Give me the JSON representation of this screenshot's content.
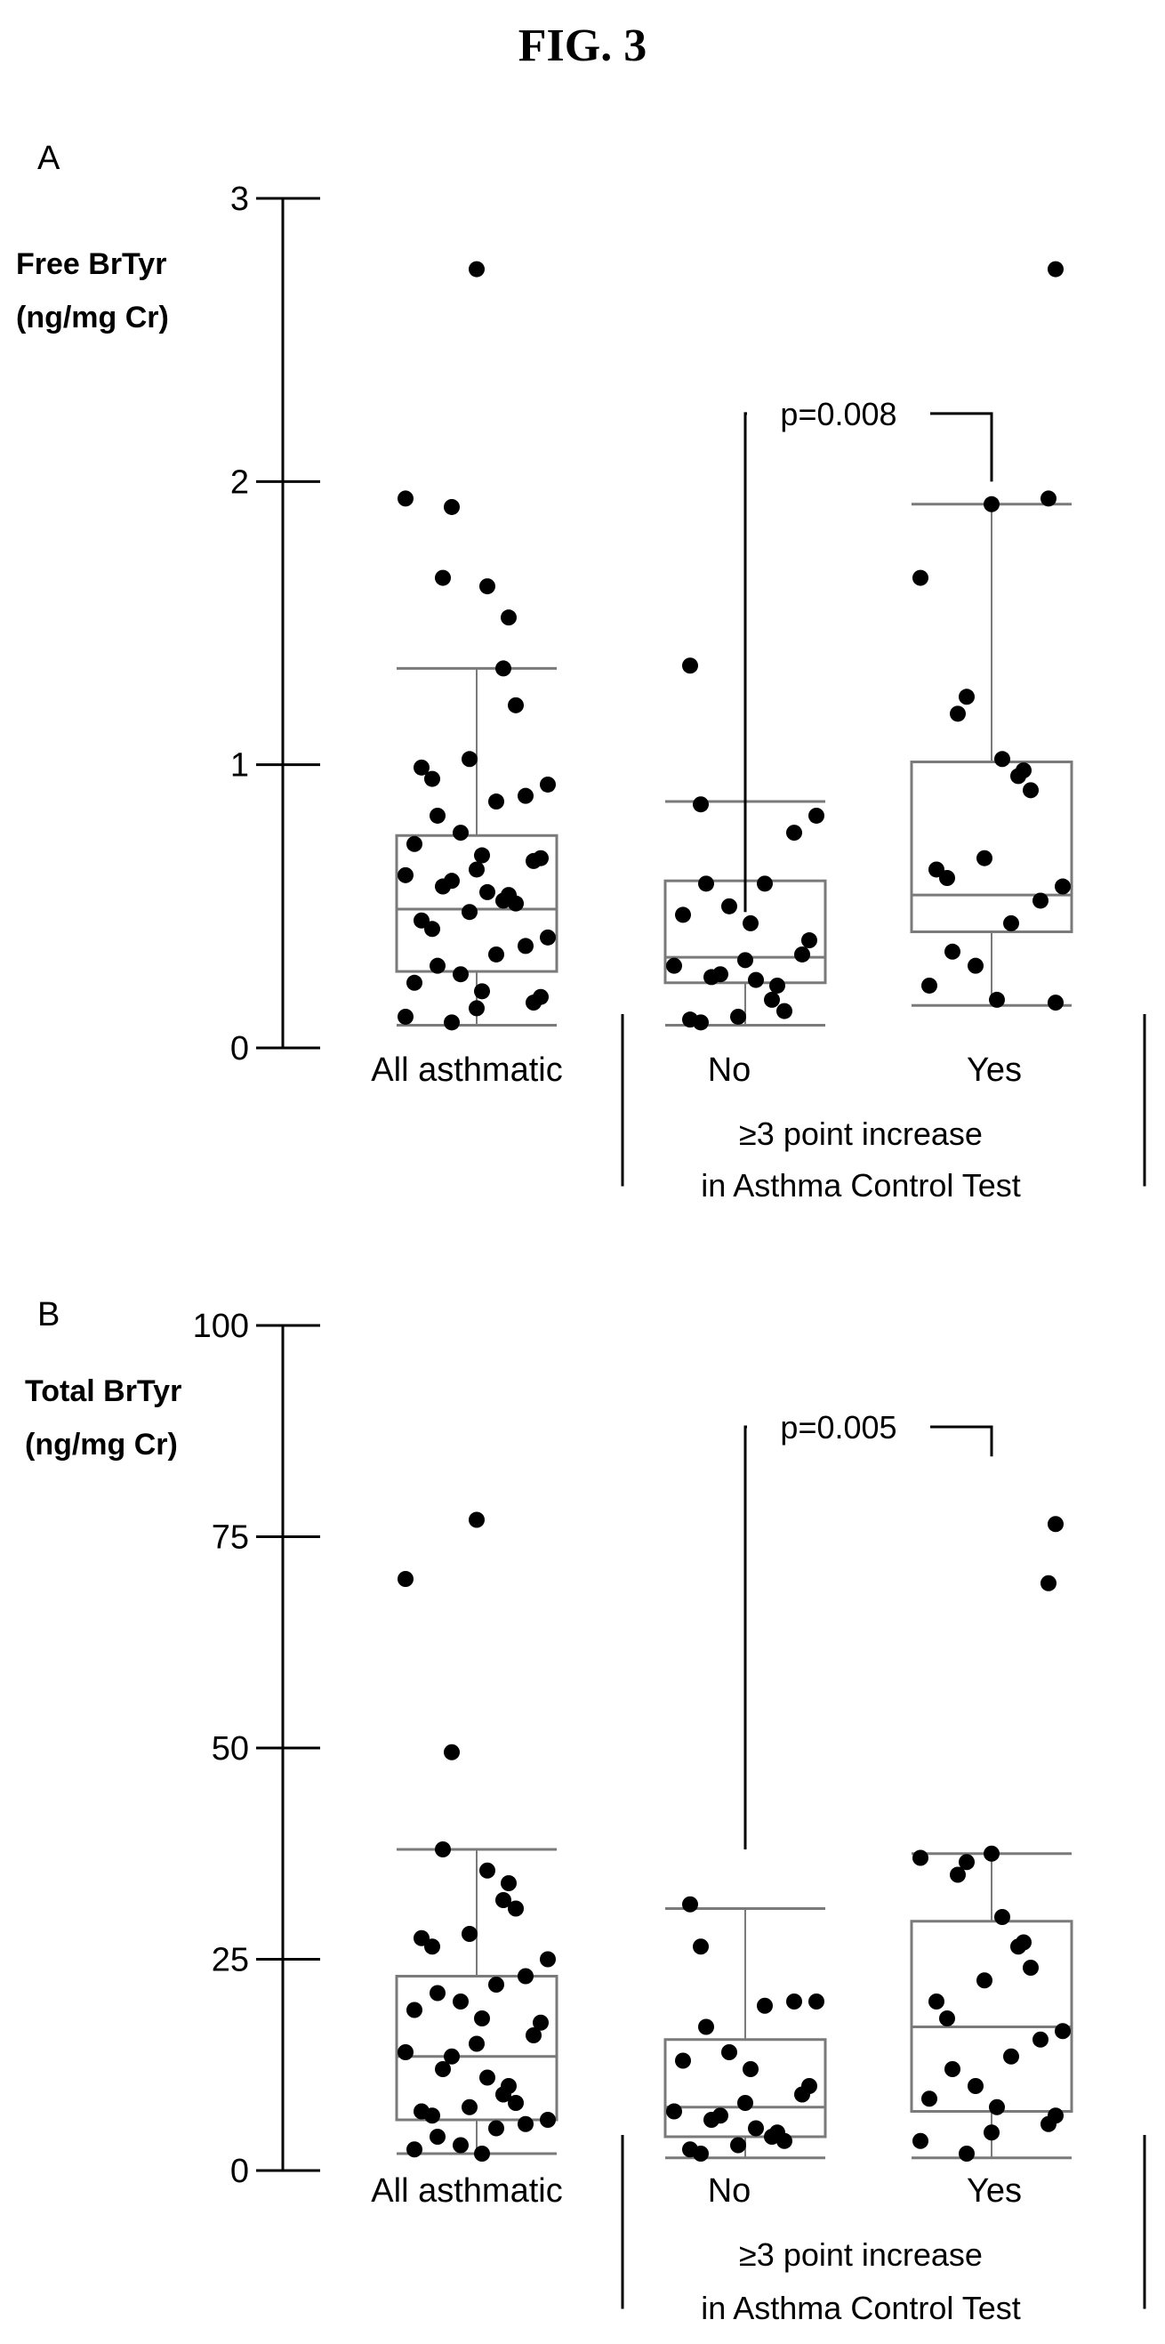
{
  "figure_title": "FIG. 3",
  "chart_data": [
    {
      "type": "box-scatter",
      "panel_label": "A",
      "ylabel_line1": "Free BrTyr",
      "ylabel_line2": "(ng/mg Cr)",
      "ylim": [
        0,
        3
      ],
      "yticks": [
        "0",
        "1",
        "2",
        "3"
      ],
      "ytick_values": [
        0,
        1,
        2,
        3
      ],
      "categories": [
        "All asthmatic",
        "No",
        "Yes"
      ],
      "group_bracket": {
        "line1": "≥3 point increase",
        "line2": "in Asthma Control Test"
      },
      "significance": {
        "label": "p=0.008",
        "between": [
          "No",
          "Yes"
        ],
        "left_y": 0.48,
        "right_y": 2.0,
        "top_y": 2.24
      },
      "groups": [
        {
          "name": "All asthmatic",
          "box": {
            "whisker_low": 0.08,
            "q1": 0.27,
            "median": 0.49,
            "q3": 0.75,
            "whisker_high": 1.34
          },
          "points": [
            2.75,
            1.94,
            1.91,
            1.66,
            1.63,
            1.52,
            1.34,
            1.21,
            1.02,
            0.99,
            0.95,
            0.93,
            0.89,
            0.87,
            0.82,
            0.76,
            0.72,
            0.68,
            0.67,
            0.66,
            0.63,
            0.61,
            0.59,
            0.57,
            0.55,
            0.54,
            0.52,
            0.51,
            0.48,
            0.45,
            0.42,
            0.39,
            0.36,
            0.33,
            0.29,
            0.26,
            0.23,
            0.2,
            0.18,
            0.16,
            0.14,
            0.11,
            0.09
          ]
        },
        {
          "name": "No",
          "box": {
            "whisker_low": 0.08,
            "q1": 0.23,
            "median": 0.32,
            "q3": 0.59,
            "whisker_high": 0.87
          },
          "points": [
            1.35,
            0.86,
            0.82,
            0.76,
            0.58,
            0.58,
            0.5,
            0.47,
            0.44,
            0.38,
            0.33,
            0.31,
            0.29,
            0.26,
            0.25,
            0.24,
            0.22,
            0.17,
            0.13,
            0.11,
            0.1,
            0.09
          ]
        },
        {
          "name": "Yes",
          "box": {
            "whisker_low": 0.15,
            "q1": 0.41,
            "median": 0.54,
            "q3": 1.01,
            "whisker_high": 1.92
          },
          "points": [
            2.75,
            1.94,
            1.92,
            1.66,
            1.24,
            1.18,
            1.02,
            0.98,
            0.96,
            0.91,
            0.67,
            0.63,
            0.6,
            0.57,
            0.52,
            0.44,
            0.34,
            0.29,
            0.22,
            0.17,
            0.16
          ]
        }
      ]
    },
    {
      "type": "box-scatter",
      "panel_label": "B",
      "ylabel_line1": "Total BrTyr",
      "ylabel_line2": "(ng/mg Cr)",
      "ylim": [
        0,
        100
      ],
      "yticks": [
        "0",
        "25",
        "50",
        "75",
        "100"
      ],
      "ytick_values": [
        0,
        25,
        50,
        75,
        100
      ],
      "categories": [
        "All asthmatic",
        "No",
        "Yes"
      ],
      "group_bracket": {
        "line1": "≥3 point increase",
        "line2": "in Asthma Control Test"
      },
      "significance": {
        "label": "p=0.005",
        "between": [
          "No",
          "Yes"
        ],
        "left_y": 38,
        "right_y": 84.5,
        "top_y": 88
      },
      "groups": [
        {
          "name": "All asthmatic",
          "box": {
            "whisker_low": 2,
            "q1": 6,
            "median": 13.5,
            "q3": 23,
            "whisker_high": 38
          },
          "points": [
            77,
            70,
            49.5,
            38,
            35.5,
            34,
            32,
            31,
            28,
            27.5,
            26.5,
            25,
            23,
            22,
            21,
            20,
            19,
            18,
            17.5,
            16,
            15,
            14,
            13.5,
            12,
            11,
            10,
            9,
            8,
            7.5,
            7,
            6.5,
            6,
            5.5,
            5,
            4,
            3,
            2.5,
            2
          ]
        },
        {
          "name": "No",
          "box": {
            "whisker_low": 1.5,
            "q1": 4,
            "median": 7.5,
            "q3": 15.5,
            "whisker_high": 31
          },
          "points": [
            31.5,
            26.5,
            20,
            20,
            19.5,
            17,
            14,
            13,
            12,
            10,
            9,
            8,
            7,
            6.5,
            6,
            5,
            4.5,
            4,
            3.5,
            3,
            2.5,
            2
          ]
        },
        {
          "name": "Yes",
          "box": {
            "whisker_low": 1.5,
            "q1": 7,
            "median": 17,
            "q3": 29.5,
            "whisker_high": 37.5
          },
          "points": [
            76.5,
            69.5,
            37.5,
            37,
            36.5,
            35,
            30,
            27,
            26.5,
            24,
            22.5,
            20,
            18,
            16.5,
            15.5,
            13.5,
            12,
            10,
            8.5,
            7.5,
            6.5,
            5.5,
            4.5,
            3.5,
            2
          ]
        }
      ]
    }
  ]
}
